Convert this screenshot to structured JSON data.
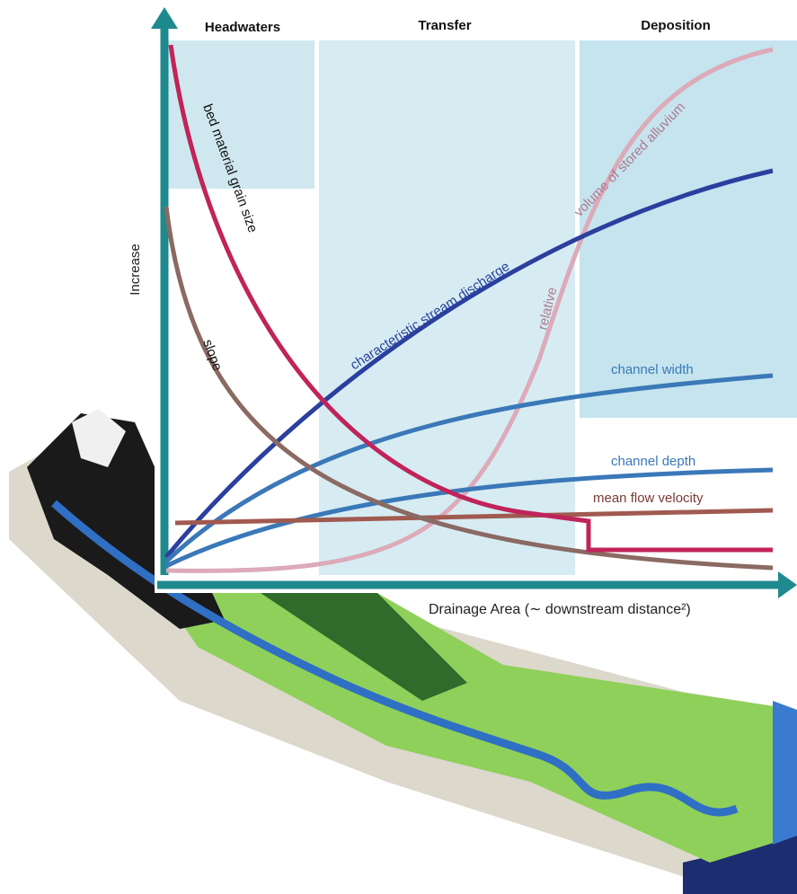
{
  "zones": [
    "Headwaters",
    "Transfer",
    "Deposition"
  ],
  "axes": {
    "y_label": "Increase",
    "x_label": "Drainage Area (∼ downstream distance²)"
  },
  "curves": {
    "grain_size": "bed material grain size",
    "slope": "slope",
    "discharge": "characteristic stream discharge",
    "alluvium_1": "relative",
    "alluvium_2": "volume of stored alluvium",
    "width": "channel width",
    "depth": "channel depth",
    "velocity": "mean flow velocity"
  }
}
